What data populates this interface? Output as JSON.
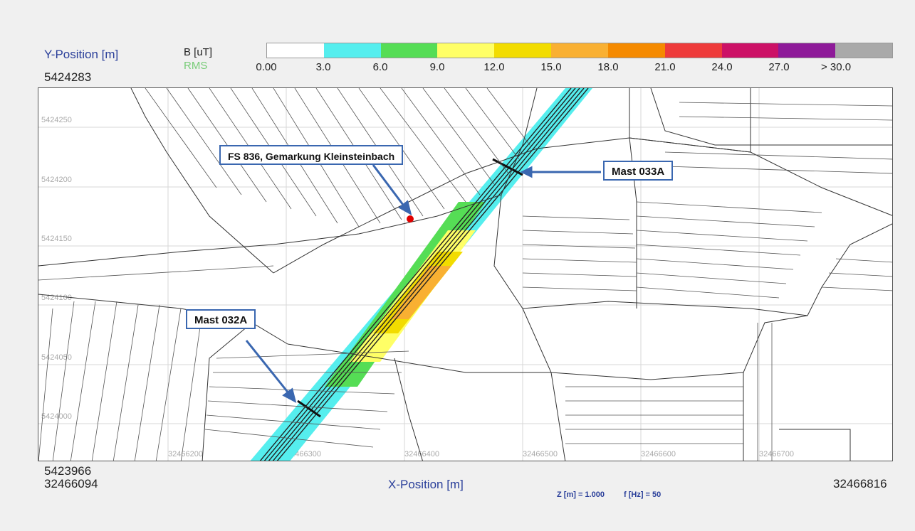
{
  "axes": {
    "y_label": "Y-Position [m]",
    "y_max": "5424283",
    "y_min": "5423966",
    "x_label": "X-Position [m]",
    "x_min": "32466094",
    "x_max": "32466816"
  },
  "legend": {
    "quantity": "B [uT]",
    "mode": "RMS",
    "ticks": [
      "0.00",
      "3.0",
      "6.0",
      "9.0",
      "12.0",
      "15.0",
      "18.0",
      "21.0",
      "24.0",
      "27.0",
      "> 30.0"
    ],
    "colors": [
      "#ffffff",
      "#55eeee",
      "#55dd55",
      "#ffff66",
      "#f2dc00",
      "#f9b032",
      "#f58a00",
      "#ee3b3b",
      "#cc1166",
      "#8e1a99",
      "#a9a9a9"
    ]
  },
  "grid_labels": {
    "y": [
      "5424250",
      "5424200",
      "5424150",
      "5424100",
      "5424050",
      "5424000"
    ],
    "x": [
      "32466200",
      "32466300",
      "32466400",
      "32466500",
      "32466600",
      "32466700"
    ]
  },
  "info": {
    "z": "Z [m] = 1.000",
    "f": "f [Hz] = 50"
  },
  "annotations": {
    "fs": "FS 836, Gemarkung Kleinsteinbach",
    "mast_033a": "Mast 033A",
    "mast_032a": "Mast 032A"
  },
  "colors": {
    "axis_text": "#2a3f9a",
    "callout_border": "#3a67b0",
    "point": "#e00000"
  }
}
